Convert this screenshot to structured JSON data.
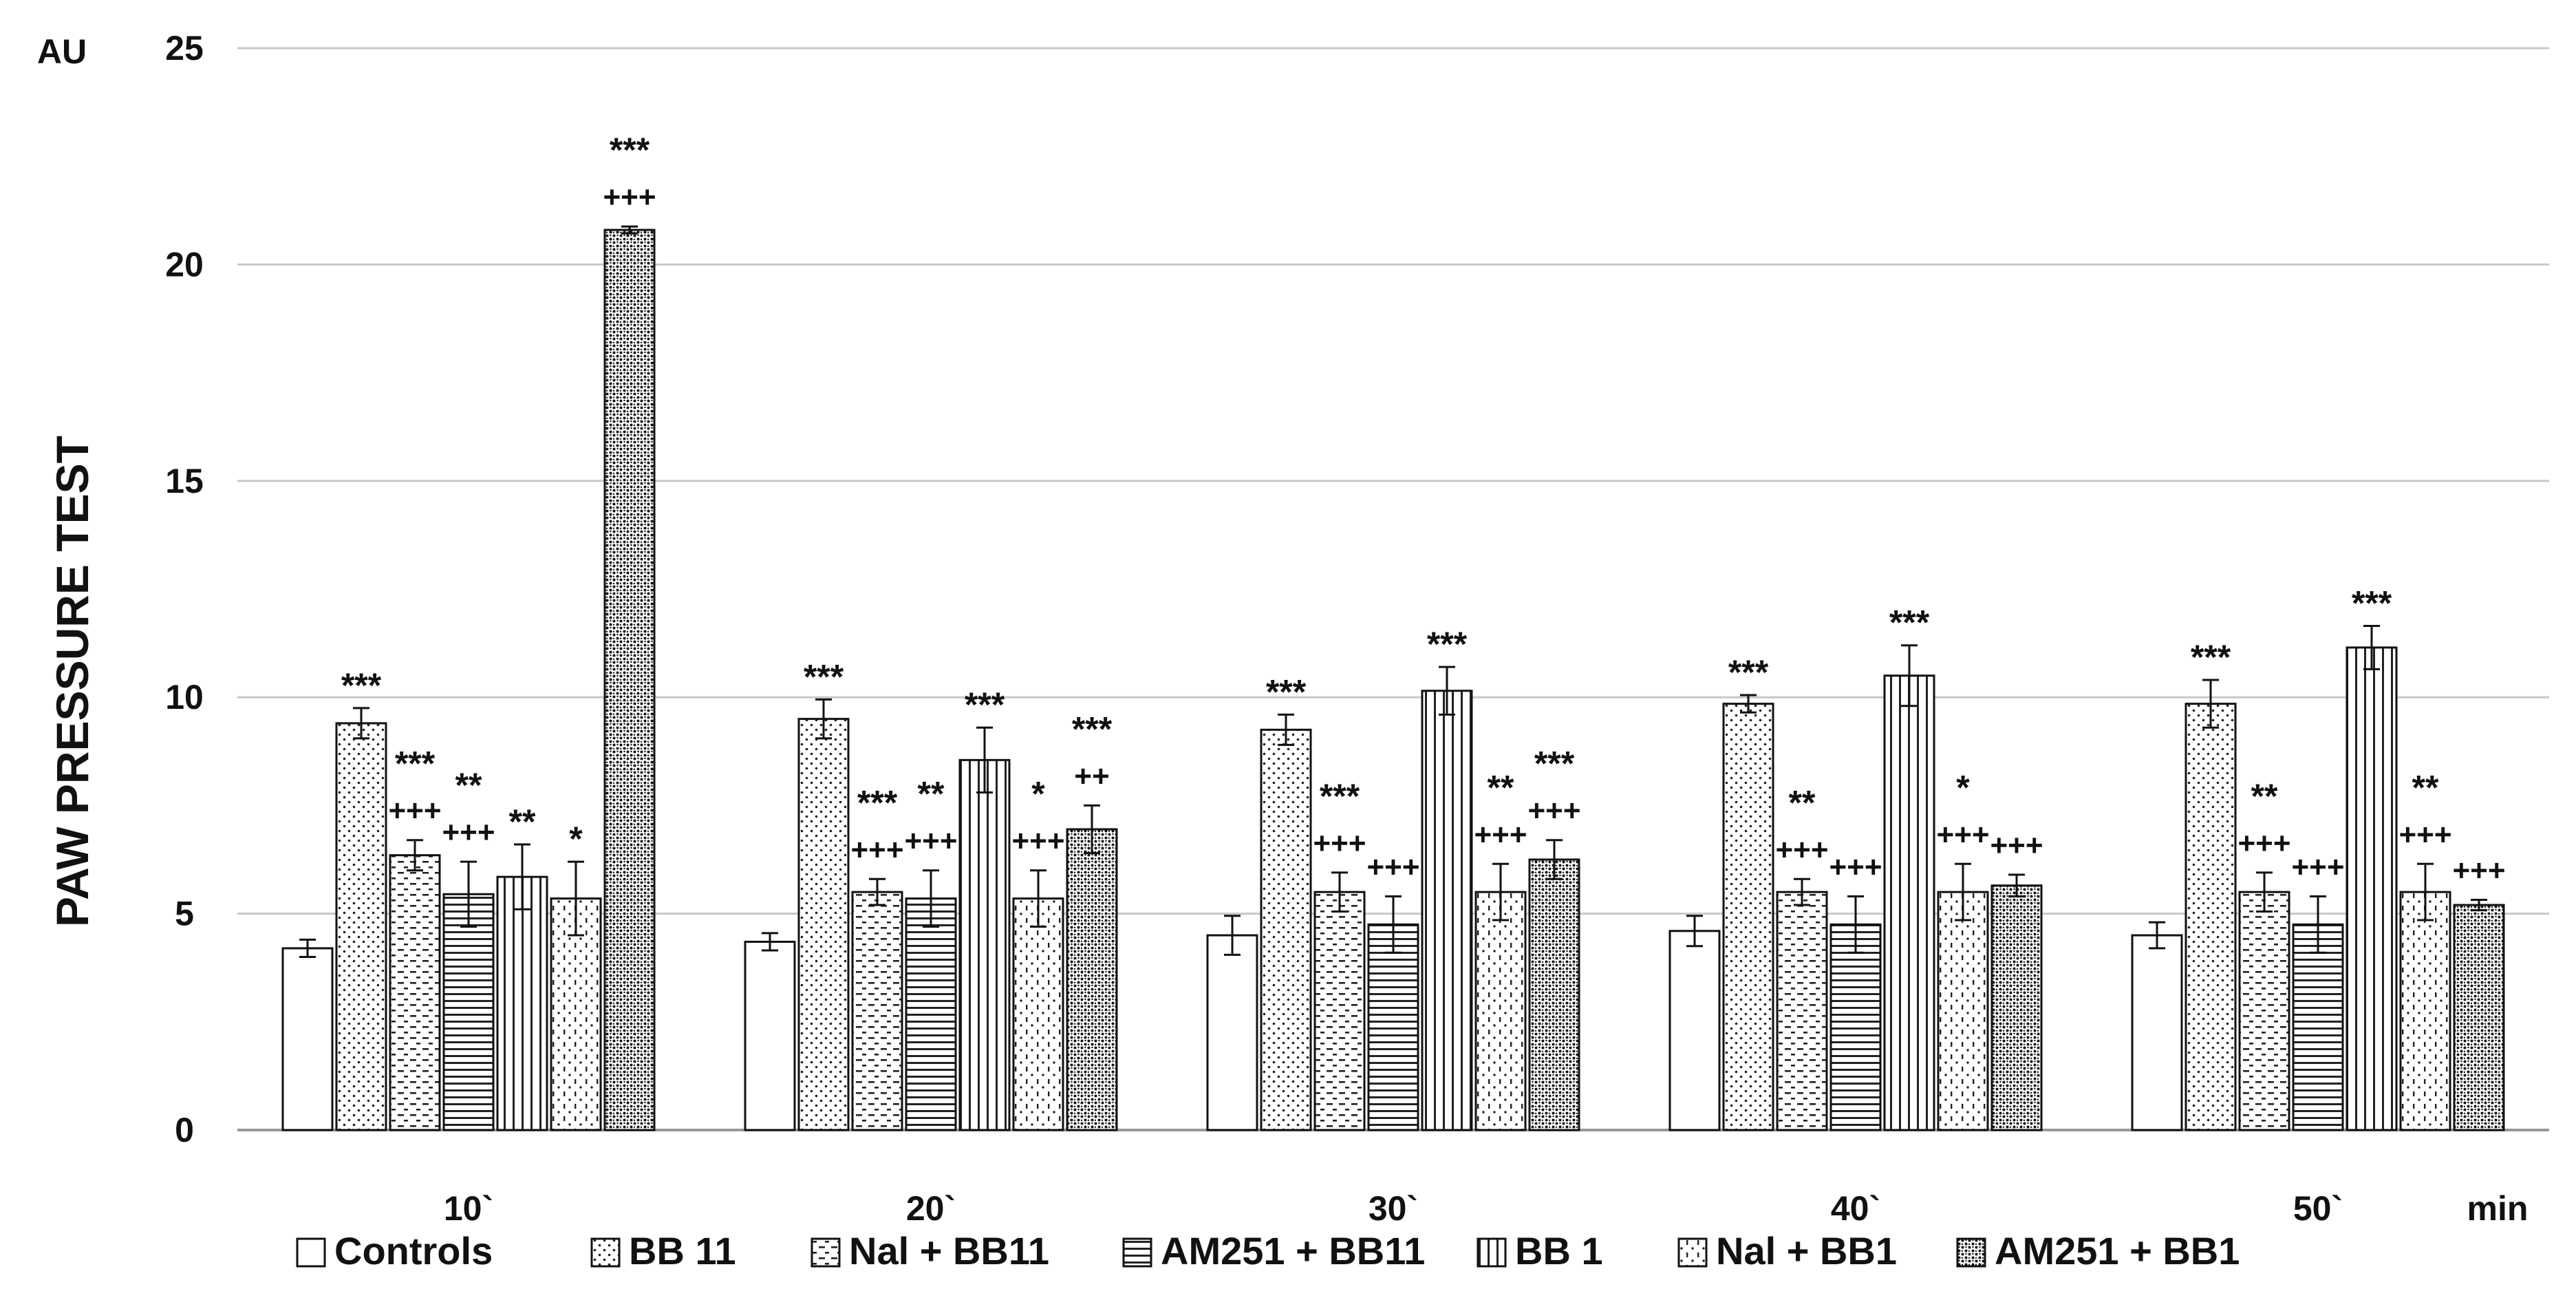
{
  "chart_data": {
    "type": "bar",
    "ylabel": "PAW  PRESSURE  TEST",
    "yunit": "AU",
    "xunit": "min",
    "ylim": [
      0,
      25
    ],
    "yticks": [
      0,
      5,
      10,
      15,
      20,
      25
    ],
    "grid": true,
    "legend_position": "bottom",
    "categories": [
      "10`",
      "20`",
      "30`",
      "40`",
      "50`"
    ],
    "series": [
      {
        "name": "Controls",
        "pattern": "plain",
        "values": [
          4.2,
          4.35,
          4.5,
          4.6,
          4.5
        ],
        "errors": [
          0.2,
          0.2,
          0.45,
          0.35,
          0.3
        ],
        "sig": [
          "",
          "",
          "",
          "",
          ""
        ],
        "sig2": [
          "",
          "",
          "",
          "",
          ""
        ]
      },
      {
        "name": "BB 11",
        "pattern": "dots",
        "values": [
          9.4,
          9.5,
          9.25,
          9.85,
          9.85
        ],
        "errors": [
          0.35,
          0.45,
          0.35,
          0.2,
          0.55
        ],
        "sig": [
          "***",
          "***",
          "***",
          "***",
          "***"
        ],
        "sig2": [
          "",
          "",
          "",
          "",
          ""
        ]
      },
      {
        "name": "Nal + BB11",
        "pattern": "dashes",
        "values": [
          6.35,
          5.5,
          5.5,
          5.5,
          5.5
        ],
        "errors": [
          0.35,
          0.3,
          0.45,
          0.3,
          0.45
        ],
        "sig": [
          "***",
          "***",
          "***",
          "**",
          "**"
        ],
        "sig2": [
          "+++",
          "+++",
          "+++",
          "+++",
          "+++"
        ]
      },
      {
        "name": "AM251 + BB11",
        "pattern": "hlines",
        "values": [
          5.45,
          5.35,
          4.75,
          4.75,
          4.75
        ],
        "errors": [
          0.75,
          0.65,
          0.65,
          0.65,
          0.65
        ],
        "sig": [
          "**",
          "**",
          "",
          "",
          ""
        ],
        "sig2": [
          "+++",
          "+++",
          "+++",
          "+++",
          "+++"
        ]
      },
      {
        "name": "BB 1",
        "pattern": "vlines",
        "values": [
          5.85,
          8.55,
          10.15,
          10.5,
          11.15
        ],
        "errors": [
          0.75,
          0.75,
          0.55,
          0.7,
          0.5
        ],
        "sig": [
          "**",
          "***",
          "***",
          "***",
          "***"
        ],
        "sig2": [
          "",
          "",
          "",
          "",
          ""
        ]
      },
      {
        "name": "Nal + BB1",
        "pattern": "dashdots",
        "values": [
          5.35,
          5.35,
          5.5,
          5.5,
          5.5
        ],
        "errors": [
          0.85,
          0.65,
          0.65,
          0.65,
          0.65
        ],
        "sig": [
          "*",
          "*",
          "**",
          "*",
          "**"
        ],
        "sig2": [
          "",
          "+++",
          "+++",
          "+++",
          "+++"
        ]
      },
      {
        "name": "AM251 + BB1",
        "pattern": "dense",
        "values": [
          20.8,
          6.95,
          6.25,
          5.65,
          5.2
        ],
        "errors": [
          0.08,
          0.55,
          0.45,
          0.25,
          0.12
        ],
        "sig": [
          "***",
          "***",
          "***",
          "",
          ""
        ],
        "sig2": [
          "+++",
          "++",
          "+++",
          "+++",
          "+++"
        ]
      }
    ]
  }
}
